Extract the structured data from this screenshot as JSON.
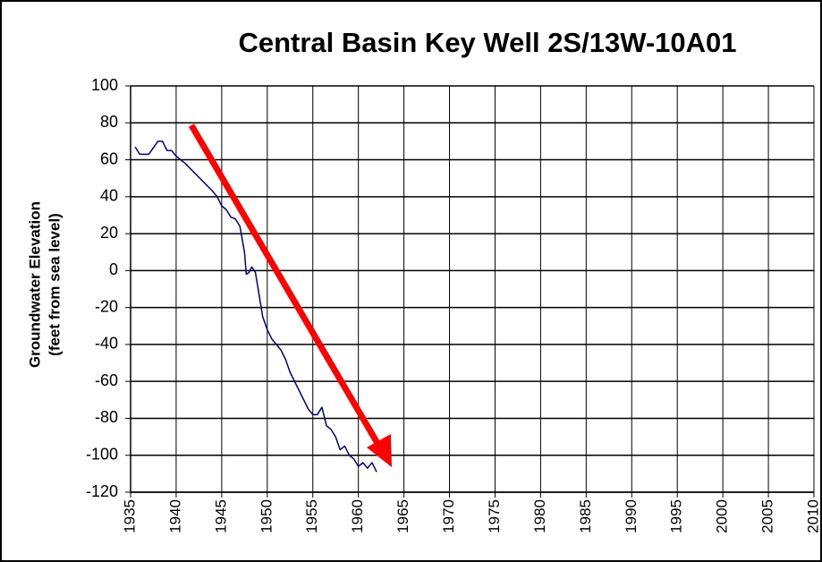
{
  "chart_data": {
    "type": "line",
    "title": "Central Basin Key Well 2S/13W-10A01",
    "ylabel": [
      "Groundwater Elevation",
      "(feet from sea level)"
    ],
    "x": [
      1935.5,
      1936,
      1937,
      1938,
      1938.5,
      1939,
      1939.5,
      1940,
      1941,
      1944,
      1944.5,
      1945,
      1945.5,
      1946,
      1946.5,
      1947,
      1947.5,
      1947.7,
      1948,
      1948.3,
      1948.7,
      1949,
      1949.5,
      1950,
      1950.5,
      1951,
      1951.5,
      1952,
      1952.5,
      1953,
      1953.5,
      1954,
      1954.5,
      1955,
      1955.5,
      1956,
      1956.5,
      1957,
      1957.5,
      1958,
      1958.5,
      1959,
      1959.5,
      1960,
      1960.5,
      1961,
      1961.5,
      1962
    ],
    "values": [
      67,
      63,
      63,
      70,
      70,
      65,
      65,
      62,
      58,
      43,
      40,
      35,
      33,
      29,
      28,
      24,
      10,
      -2,
      -1,
      2,
      -1,
      -10,
      -25,
      -32,
      -37,
      -40,
      -43,
      -48,
      -55,
      -60,
      -65,
      -70,
      -75,
      -78,
      -78,
      -74,
      -84,
      -86,
      -90,
      -97,
      -95,
      -100,
      -102,
      -106,
      -104,
      -107,
      -104,
      -109
    ],
    "color": "#000080",
    "xlim": [
      1935,
      2010
    ],
    "xticks": [
      1935,
      1940,
      1945,
      1950,
      1955,
      1960,
      1965,
      1970,
      1975,
      1980,
      1985,
      1990,
      1995,
      2000,
      2005,
      2010
    ],
    "ylim": [
      -120,
      100
    ],
    "yticks": [
      -120,
      -100,
      -80,
      -60,
      -40,
      -20,
      0,
      20,
      40,
      60,
      80,
      100
    ],
    "grid": true
  }
}
